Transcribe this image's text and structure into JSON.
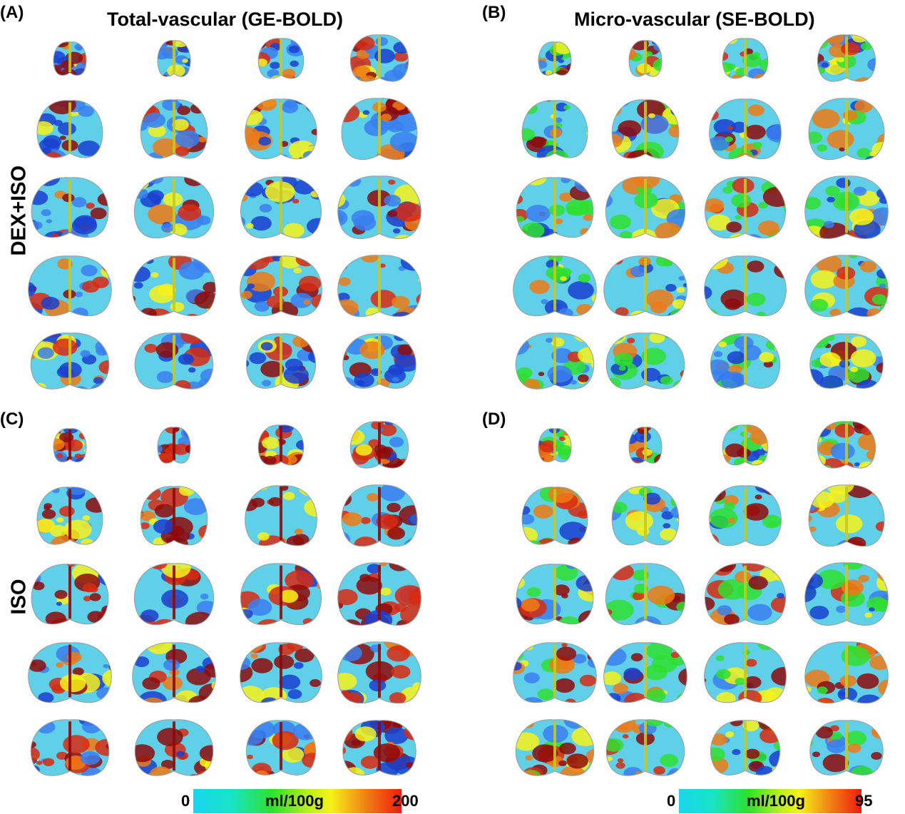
{
  "panels": {
    "A": "(A)",
    "B": "(B)",
    "C": "(C)",
    "D": "(D)"
  },
  "columns": {
    "left": "Total-vascular (GE-BOLD)",
    "right": "Micro-vascular (SE-BOLD)"
  },
  "rows": {
    "top": "DEX+ISO",
    "bottom": "ISO"
  },
  "colorbars": {
    "left": {
      "min": "0",
      "unit": "ml/100g",
      "max": "200"
    },
    "right": {
      "min": "0",
      "unit": "ml/100g",
      "max": "95"
    }
  },
  "colors": {
    "low": "#1a3fd0",
    "cyan": "#18d6f0",
    "green": "#2ee02e",
    "yellow": "#f7f21a",
    "orange": "#f07a14",
    "high": "#8e0a0a",
    "outline": "#9a9a9a"
  }
}
